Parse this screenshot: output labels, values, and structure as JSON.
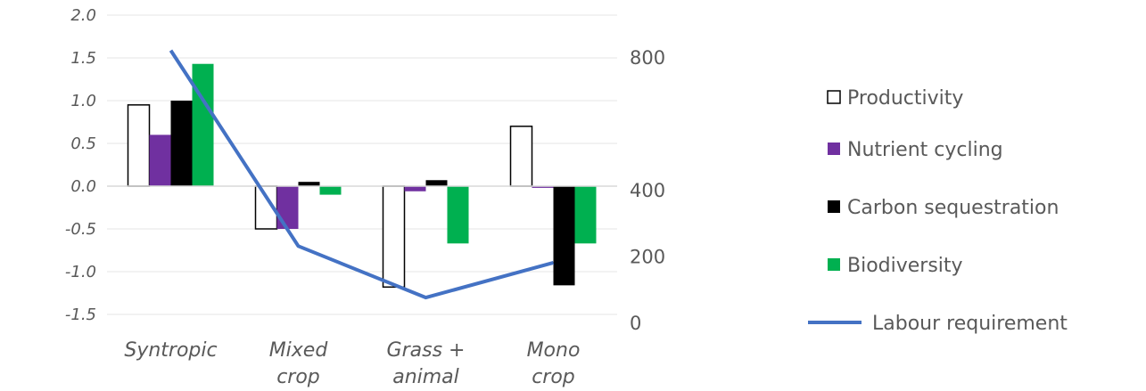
{
  "chart_data": {
    "type": "bar",
    "categories": [
      [
        "Syntropic"
      ],
      [
        "Mixed",
        "crop"
      ],
      [
        "Grass +",
        "animal"
      ],
      [
        "Mono",
        "crop"
      ]
    ],
    "series": [
      {
        "name": "Productivity",
        "values": [
          0.95,
          -0.5,
          -1.18,
          0.7
        ],
        "color": "#ffffff",
        "stroke": "#000000"
      },
      {
        "name": "Nutrient cycling",
        "values": [
          0.6,
          -0.5,
          -0.06,
          -0.02
        ],
        "color": "#7030a0"
      },
      {
        "name": "Carbon sequestration",
        "values": [
          1.0,
          0.05,
          0.07,
          -1.16
        ],
        "color": "#000000"
      },
      {
        "name": "Biodiversity",
        "values": [
          1.43,
          -0.1,
          -0.67,
          -0.67
        ],
        "color": "#00b050"
      }
    ],
    "line_series": {
      "name": "Labour requirement",
      "values": [
        820,
        230,
        75,
        180
      ],
      "color": "#4472c4",
      "axis": "right"
    },
    "y_left": {
      "range": [
        -1.5,
        2.0
      ],
      "ticks": [
        "2.0",
        "1.5",
        "1.0",
        "0.5",
        "0.0",
        "-0.5",
        "-1.0",
        "-1.5"
      ],
      "tick_values": [
        2.0,
        1.5,
        1.0,
        0.5,
        0.0,
        -0.5,
        -1.0,
        -1.5
      ]
    },
    "y_right": {
      "range": [
        0,
        800
      ],
      "ticks": [
        "800",
        "400",
        "200",
        "0"
      ],
      "tick_values": [
        800,
        400,
        200,
        0
      ]
    },
    "grid": true,
    "legend_position": "right"
  }
}
